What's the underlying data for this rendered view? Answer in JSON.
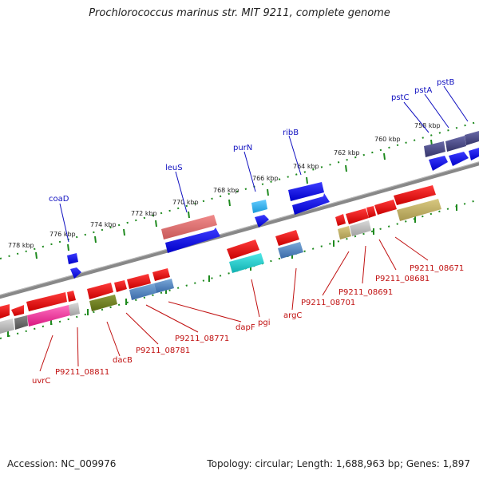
{
  "title": "Prochlorococcus marinus str. MIT 9211, complete genome",
  "footer": {
    "accession": "Accession: NC_009976",
    "summary": "Topology: circular; Length: 1,688,963 bp; Genes: 1,897"
  },
  "scale_labels": [
    "778 kbp",
    "776 kbp",
    "774 kbp",
    "772 kbp",
    "770 kbp",
    "768 kbp",
    "766 kbp",
    "764 kbp",
    "762 kbp",
    "760 kbp",
    "758 kbp"
  ],
  "top_gene_labels": [
    "coaD",
    "leuS",
    "purN",
    "ribB",
    "pstC",
    "pstA",
    "pstB"
  ],
  "bottom_gene_labels": [
    "uvrC",
    "P9211_08811",
    "dacB",
    "P9211_08781",
    "P9211_08771",
    "dapF",
    "pgi",
    "argC",
    "P9211_08701",
    "P9211_08691",
    "P9211_08681",
    "P9211_08671"
  ],
  "colors": {
    "forward_gene": "#0a0ae8",
    "reverse_gene": "#ee0a0a",
    "backbone": "#888888",
    "tick": "#1e8a1e",
    "label_top": "#1010c0",
    "label_bottom": "#c01010"
  }
}
